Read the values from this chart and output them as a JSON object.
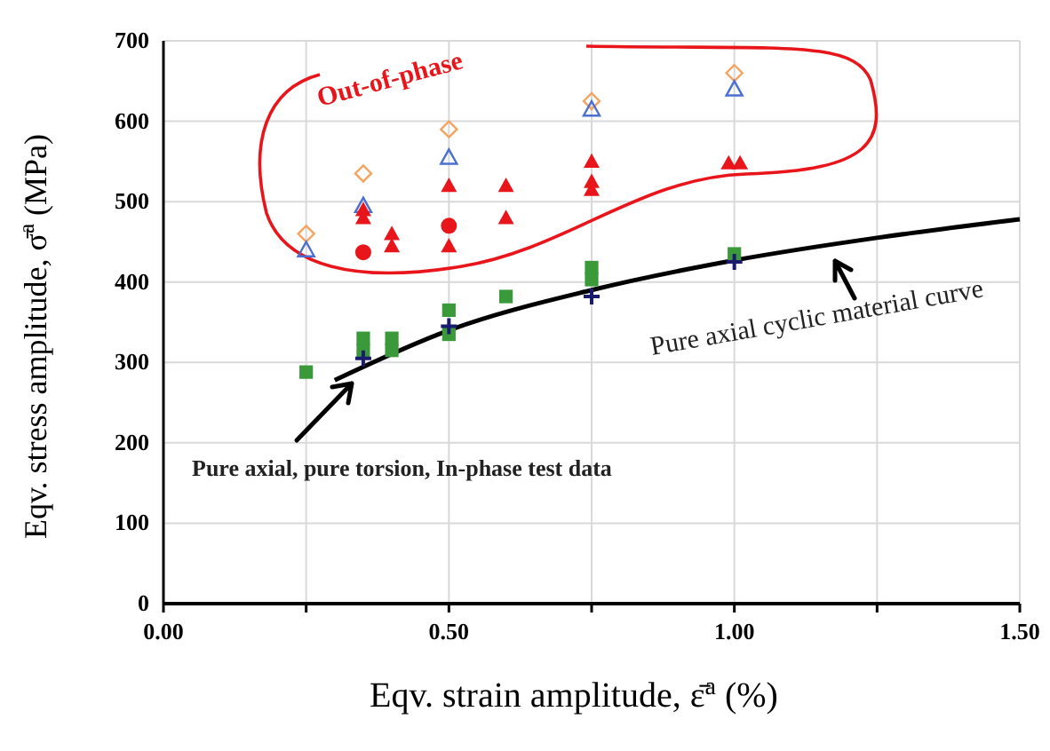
{
  "chart_data": {
    "type": "scatter",
    "xlabel": "Eqv. strain amplitude, ε̄$^{a}$ (%)",
    "ylabel": "Eqv. stress amplitude, σ̄$^{a}$ (MPa)",
    "xlim": [
      0,
      1.5
    ],
    "ylim": [
      0,
      700
    ],
    "xticks": [
      {
        "value": 0,
        "label": "0.00"
      },
      {
        "value": 0.25,
        "label": null
      },
      {
        "value": 0.5,
        "label": "0.50"
      },
      {
        "value": 0.75,
        "label": null
      },
      {
        "value": 1,
        "label": "1.00"
      },
      {
        "value": 1.25,
        "label": null
      },
      {
        "value": 1.5,
        "label": "1.50"
      }
    ],
    "yticks": [
      0,
      100,
      200,
      300,
      400,
      500,
      600,
      700
    ],
    "grid": true,
    "series": [
      {
        "type": "line",
        "color": "#000000",
        "marker": "none",
        "line_style": "solid",
        "x": [
          0.3,
          0.5,
          0.75,
          1.0,
          1.25,
          1.5
        ],
        "values": [
          278,
          340,
          390,
          427,
          455,
          478
        ]
      },
      {
        "color": "#f4a460",
        "marker": "diamond-open",
        "x": [
          0.25,
          0.35,
          0.5,
          0.75,
          1.0
        ],
        "values": [
          460,
          535,
          590,
          625,
          660
        ]
      },
      {
        "color": "#4a6fd0",
        "marker": "triangle-open",
        "x": [
          0.25,
          0.35,
          0.5,
          0.75,
          1.0
        ],
        "values": [
          440,
          495,
          555,
          615,
          640
        ]
      },
      {
        "color": "#e8161b",
        "marker": "triangle",
        "x": [
          0.35,
          0.35,
          0.4,
          0.4,
          0.5,
          0.5,
          0.6,
          0.6,
          0.75,
          0.75,
          0.75,
          0.99,
          1.01
        ],
        "values": [
          490,
          480,
          460,
          445,
          520,
          445,
          520,
          480,
          550,
          525,
          515,
          548,
          548
        ]
      },
      {
        "color": "#e8161b",
        "marker": "circle",
        "x": [
          0.35,
          0.5
        ],
        "values": [
          437,
          470
        ]
      },
      {
        "color": "#3a9a3a",
        "marker": "square",
        "x": [
          0.25,
          0.35,
          0.35,
          0.4,
          0.4,
          0.5,
          0.5,
          0.6,
          0.75,
          0.75,
          1.0
        ],
        "values": [
          288,
          330,
          315,
          330,
          315,
          365,
          335,
          382,
          418,
          403,
          435
        ]
      },
      {
        "color": "#1a1a6e",
        "marker": "cross",
        "x": [
          0.35,
          0.5,
          0.75,
          1.0
        ],
        "values": [
          305,
          345,
          382,
          425
        ]
      }
    ],
    "annotations": [
      "Out-of-phase",
      "Pure axial cyclic material curve",
      "Pure axial, pure torsion, In-phase test data"
    ]
  }
}
